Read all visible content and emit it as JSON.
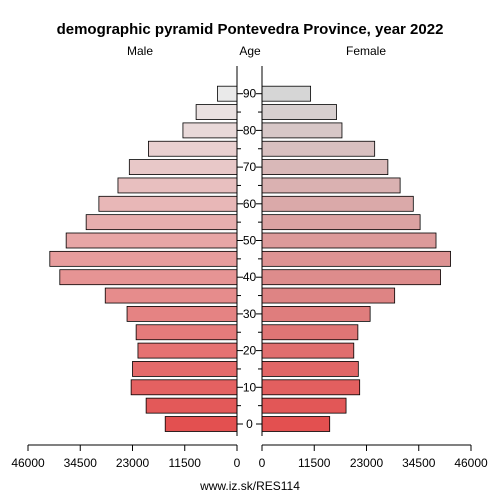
{
  "chart_data": {
    "type": "bar",
    "title": "demographic pyramid Pontevedra Province, year 2022",
    "left_label": "Male",
    "center_label": "Age",
    "right_label": "Female",
    "source": "www.iz.sk/RES114",
    "x_ticks": [
      "46000",
      "34500",
      "23000",
      "11500",
      "0",
      "0",
      "11500",
      "23000",
      "34500",
      "46000"
    ],
    "x_tick_values": [
      46000,
      34500,
      23000,
      11500,
      0
    ],
    "xlim": [
      0,
      46000
    ],
    "age_groups": [
      0,
      5,
      10,
      15,
      20,
      25,
      30,
      35,
      40,
      45,
      50,
      55,
      60,
      65,
      70,
      75,
      80,
      85,
      90
    ],
    "age_labels": [
      "0",
      "10",
      "20",
      "30",
      "40",
      "50",
      "60",
      "70",
      "80",
      "90"
    ],
    "age_label_values": [
      0,
      10,
      20,
      30,
      40,
      50,
      60,
      70,
      80,
      90
    ],
    "series": [
      {
        "name": "Male",
        "values": [
          15800,
          20000,
          23300,
          23000,
          21800,
          22200,
          24200,
          29000,
          39000,
          41200,
          37600,
          33200,
          30400,
          26200,
          23700,
          19500,
          11900,
          9000,
          4300
        ]
      },
      {
        "name": "Female",
        "values": [
          14900,
          18500,
          21500,
          21200,
          20200,
          21100,
          23800,
          29200,
          39300,
          41500,
          38300,
          34800,
          33300,
          30400,
          27700,
          24800,
          17600,
          16400,
          10700
        ]
      }
    ],
    "colors": {
      "male_start": "#e35050",
      "male_end": "#eaeaea",
      "female_start": "#e35050",
      "female_end": "#d6d6d6",
      "stroke": "#000000"
    }
  }
}
